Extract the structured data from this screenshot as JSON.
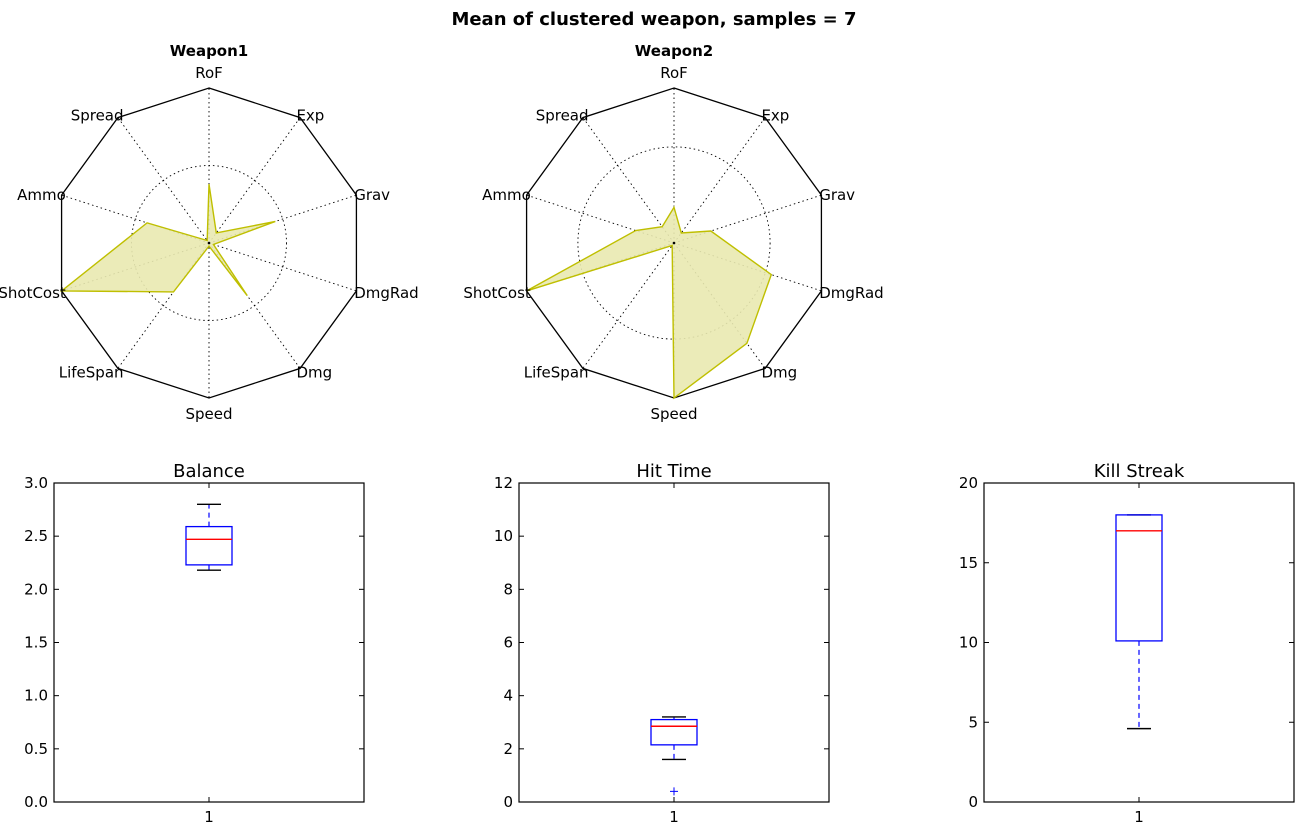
{
  "figure": {
    "title": "Mean of clustered weapon, samples = 7"
  },
  "colors": {
    "radar_line": "#bfbf00",
    "radar_fill": "#e9e9b0",
    "box": "#0000ff",
    "median": "#ff0000",
    "whisker_cap": "#000000"
  },
  "chart_data": [
    {
      "type": "radar",
      "title": "Weapon1",
      "axes": [
        "RoF",
        "Exp",
        "Grav",
        "DmgRad",
        "Dmg",
        "Speed",
        "LifeSpan",
        "ShotCost",
        "Ammo",
        "Spread"
      ],
      "values": [
        0.38,
        0.08,
        0.45,
        0.03,
        0.42,
        0.02,
        0.39,
        1.0,
        0.42,
        0.02
      ],
      "rmax": 1.0,
      "grid": [
        0.5
      ]
    },
    {
      "type": "radar",
      "title": "Weapon2",
      "axes": [
        "RoF",
        "Exp",
        "Grav",
        "DmgRad",
        "Dmg",
        "Speed",
        "LifeSpan",
        "ShotCost",
        "Ammo",
        "Spread"
      ],
      "values": [
        0.23,
        0.08,
        0.25,
        0.66,
        0.8,
        1.0,
        0.02,
        1.0,
        0.26,
        0.13
      ],
      "rmax": 1.0,
      "grid": [
        0.62
      ]
    },
    {
      "type": "box",
      "title": "Balance",
      "categories": [
        "1"
      ],
      "ylim": [
        0,
        3.0
      ],
      "yticks": [
        "0.0",
        "0.5",
        "1.0",
        "1.5",
        "2.0",
        "2.5",
        "3.0"
      ],
      "whisker_low": 2.18,
      "q1": 2.23,
      "median": 2.47,
      "q3": 2.59,
      "whisker_high": 2.8,
      "outliers": []
    },
    {
      "type": "box",
      "title": "Hit Time",
      "categories": [
        "1"
      ],
      "ylim": [
        0,
        12
      ],
      "yticks": [
        "0",
        "2",
        "4",
        "6",
        "8",
        "10",
        "12"
      ],
      "whisker_low": 1.6,
      "q1": 2.15,
      "median": 2.85,
      "q3": 3.1,
      "whisker_high": 3.2,
      "outliers": [
        0.4
      ]
    },
    {
      "type": "box",
      "title": "Kill Streak",
      "categories": [
        "1"
      ],
      "ylim": [
        0,
        20
      ],
      "yticks": [
        "0",
        "5",
        "10",
        "15",
        "20"
      ],
      "whisker_low": 4.6,
      "q1": 10.1,
      "median": 17.0,
      "q3": 18.0,
      "whisker_high": 18.0,
      "outliers": []
    }
  ]
}
